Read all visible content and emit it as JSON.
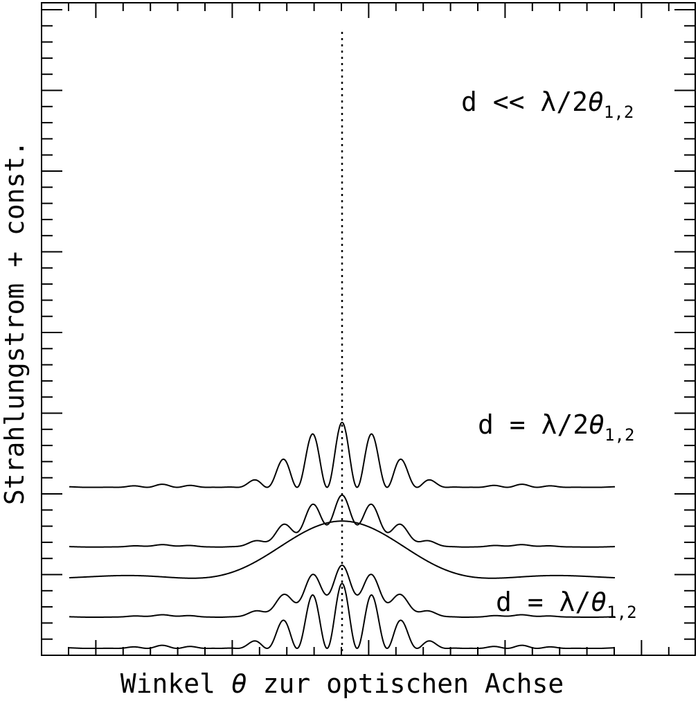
{
  "chart_data": {
    "type": "line",
    "xlabel_parts": [
      "Winkel ",
      "θ",
      " zur optischen Achse"
    ],
    "ylabel": "Strahlungstrom + const.",
    "x_range": [
      -1,
      1
    ],
    "grid": false,
    "center_line": {
      "x": 0,
      "style": "dotted"
    },
    "tick_marks_only": true,
    "annotations": [
      {
        "prefix": "d << λ/2",
        "theta": "θ",
        "sub": "1,2"
      },
      {
        "prefix": "d = λ/2",
        "theta": "θ",
        "sub": "1,2"
      },
      {
        "prefix": "d = λ/",
        "theta": "θ",
        "sub": "1,2"
      }
    ],
    "series": [
      {
        "kind": "fringes",
        "envelope": "sinc2",
        "fringe_spacing": 0.11,
        "envelope_zero": 0.45,
        "offset": 6.2,
        "amplitude": 2.5,
        "fringe_visibility": 1.0
      },
      {
        "kind": "fringes",
        "envelope": "sinc2",
        "fringe_spacing": 0.11,
        "envelope_zero": 0.45,
        "offset": 3.9,
        "amplitude": 2.0,
        "fringe_visibility": 0.55
      },
      {
        "kind": "smooth",
        "envelope": "sinc2",
        "envelope_zero": 0.55,
        "offset": 2.7,
        "amplitude": 2.2
      },
      {
        "kind": "fringes",
        "envelope": "sinc2",
        "fringe_spacing": 0.11,
        "envelope_zero": 0.45,
        "offset": 1.2,
        "amplitude": 2.0,
        "fringe_visibility": 0.55
      },
      {
        "kind": "fringes",
        "envelope": "sinc2",
        "fringe_spacing": 0.11,
        "envelope_zero": 0.45,
        "offset": 0.0,
        "amplitude": 2.5,
        "fringe_visibility": 1.0
      }
    ]
  }
}
